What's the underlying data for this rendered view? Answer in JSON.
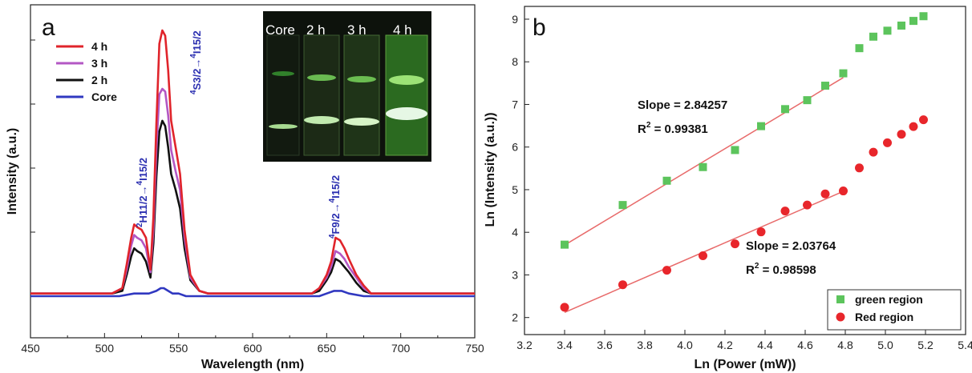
{
  "chart_data": [
    {
      "panel": "a",
      "type": "line",
      "xlabel": "Wavelength (nm)",
      "ylabel": "Intensity (a.u.)",
      "xlim": [
        450,
        750
      ],
      "xticks": [
        450,
        500,
        550,
        600,
        650,
        700,
        750
      ],
      "ylim": [
        0,
        1.0
      ],
      "legend_position": "top-left",
      "series": [
        {
          "name": "4 h",
          "color": "#e0242b",
          "x": [
            450,
            505,
            512,
            515,
            518,
            520,
            522,
            525,
            528,
            531,
            533,
            535,
            537,
            539,
            541,
            543,
            545,
            548,
            551,
            554,
            558,
            564,
            570,
            600,
            640,
            645,
            650,
            653,
            656,
            659,
            662,
            665,
            670,
            675,
            680,
            700,
            750
          ],
          "y": [
            0.01,
            0.01,
            0.03,
            0.12,
            0.22,
            0.27,
            0.26,
            0.25,
            0.22,
            0.1,
            0.3,
            0.65,
            0.95,
            1.0,
            0.98,
            0.85,
            0.66,
            0.56,
            0.46,
            0.25,
            0.08,
            0.02,
            0.01,
            0.01,
            0.01,
            0.03,
            0.08,
            0.13,
            0.22,
            0.21,
            0.18,
            0.14,
            0.08,
            0.04,
            0.01,
            0.01,
            0.01
          ]
        },
        {
          "name": "3 h",
          "color": "#b357c4",
          "x": [
            450,
            505,
            512,
            515,
            518,
            520,
            522,
            525,
            528,
            531,
            533,
            535,
            537,
            539,
            541,
            543,
            545,
            548,
            551,
            554,
            558,
            564,
            570,
            600,
            640,
            645,
            650,
            653,
            656,
            659,
            662,
            665,
            670,
            675,
            680,
            700,
            750
          ],
          "y": [
            0.01,
            0.01,
            0.03,
            0.1,
            0.19,
            0.23,
            0.22,
            0.21,
            0.18,
            0.09,
            0.25,
            0.55,
            0.76,
            0.78,
            0.77,
            0.68,
            0.55,
            0.47,
            0.4,
            0.22,
            0.07,
            0.02,
            0.01,
            0.01,
            0.01,
            0.03,
            0.07,
            0.11,
            0.17,
            0.16,
            0.14,
            0.11,
            0.07,
            0.03,
            0.01,
            0.01,
            0.01
          ]
        },
        {
          "name": "2 h",
          "color": "#111111",
          "x": [
            450,
            505,
            512,
            515,
            518,
            520,
            522,
            525,
            528,
            531,
            533,
            535,
            537,
            539,
            541,
            543,
            545,
            548,
            551,
            554,
            558,
            564,
            570,
            600,
            640,
            645,
            650,
            653,
            656,
            659,
            662,
            665,
            670,
            675,
            680,
            700,
            750
          ],
          "y": [
            0.01,
            0.01,
            0.02,
            0.08,
            0.15,
            0.18,
            0.17,
            0.16,
            0.13,
            0.07,
            0.2,
            0.45,
            0.62,
            0.66,
            0.64,
            0.56,
            0.46,
            0.4,
            0.33,
            0.18,
            0.06,
            0.02,
            0.01,
            0.01,
            0.01,
            0.02,
            0.06,
            0.09,
            0.14,
            0.13,
            0.11,
            0.09,
            0.05,
            0.02,
            0.01,
            0.01,
            0.01
          ]
        },
        {
          "name": "Core",
          "color": "#3038c0",
          "x": [
            450,
            510,
            520,
            530,
            535,
            538,
            540,
            543,
            546,
            550,
            555,
            600,
            645,
            650,
            655,
            660,
            665,
            675,
            700,
            750
          ],
          "y": [
            0.0,
            0.0,
            0.01,
            0.01,
            0.02,
            0.03,
            0.03,
            0.02,
            0.01,
            0.01,
            0.0,
            0.0,
            0.0,
            0.01,
            0.02,
            0.02,
            0.01,
            0.0,
            0.0,
            0.0
          ]
        }
      ],
      "annotations": [
        {
          "label_lower": "4",
          "sub_lower": "S3/2",
          "label_upper": "4",
          "sub_upper": "I15/2"
        },
        {
          "label_lower": "2",
          "sub_lower": "H11/2",
          "label_upper": "4",
          "sub_upper": "I15/2"
        },
        {
          "label_lower": "4",
          "sub_lower": "F9/2",
          "label_upper": "4",
          "sub_upper": "I15/2"
        }
      ],
      "inset_photo_labels": [
        "Core",
        "2 h",
        "3 h",
        "4 h"
      ]
    },
    {
      "panel": "b",
      "type": "scatter",
      "xlabel": "Ln (Power (mW))",
      "ylabel": "Ln (Intensity (a.u.))",
      "xlim": [
        3.2,
        5.4
      ],
      "xticks": [
        3.2,
        3.4,
        3.6,
        3.8,
        4.0,
        4.2,
        4.4,
        4.6,
        4.8,
        5.0,
        5.2,
        5.4
      ],
      "ylim": [
        1.6,
        9.3
      ],
      "yticks": [
        2,
        3,
        4,
        5,
        6,
        7,
        8,
        9
      ],
      "legend_position": "bottom-right",
      "series": [
        {
          "name": "green region",
          "color": "#5cc45c",
          "marker": "square",
          "x": [
            3.4,
            3.69,
            3.91,
            4.09,
            4.25,
            4.38,
            4.5,
            4.61,
            4.7,
            4.79,
            4.87,
            4.94,
            5.01,
            5.08,
            5.14,
            5.19
          ],
          "y": [
            3.71,
            4.64,
            5.21,
            5.53,
            5.93,
            6.49,
            6.89,
            7.1,
            7.44,
            7.73,
            8.32,
            8.59,
            8.73,
            8.85,
            8.96,
            9.07
          ],
          "fit": {
            "x": [
              3.4,
              4.79
            ],
            "y": [
              3.7,
              7.63
            ]
          }
        },
        {
          "name": "Red region",
          "color": "#e8262b",
          "marker": "circle",
          "x": [
            3.4,
            3.69,
            3.91,
            4.09,
            4.25,
            4.38,
            4.5,
            4.61,
            4.7,
            4.79,
            4.87,
            4.94,
            5.01,
            5.08,
            5.14,
            5.19
          ],
          "y": [
            2.24,
            2.77,
            3.11,
            3.45,
            3.73,
            4.01,
            4.5,
            4.64,
            4.9,
            4.97,
            5.51,
            5.88,
            6.1,
            6.3,
            6.48,
            6.64
          ],
          "fit": {
            "x": [
              3.4,
              4.79
            ],
            "y": [
              2.12,
              4.96
            ]
          }
        }
      ],
      "annotations": [
        {
          "slope": "Slope = 2.84257",
          "r2_base": "R",
          "r2_exp": "2",
          "r2_value": " = 0.99381"
        },
        {
          "slope": "Slope = 2.03764",
          "r2_base": "R",
          "r2_exp": "2",
          "r2_value": " = 0.98598"
        }
      ]
    }
  ]
}
